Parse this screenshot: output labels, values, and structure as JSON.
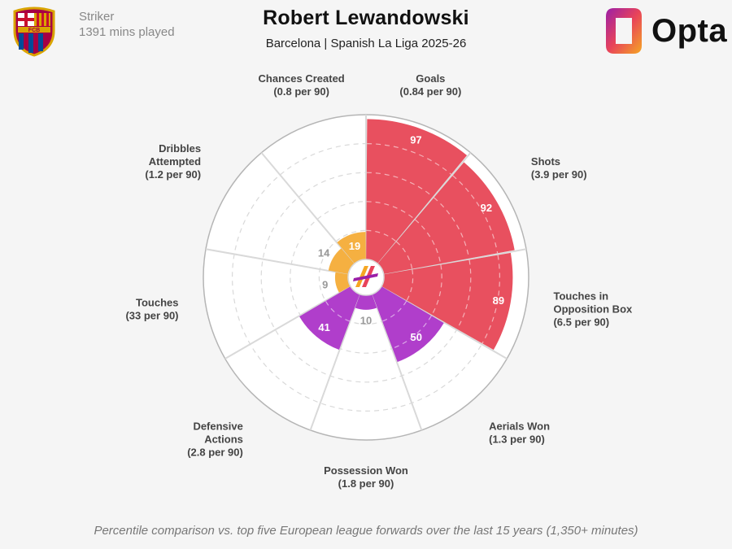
{
  "header": {
    "position": "Striker",
    "minutes": "1391 mins played",
    "player_name": "Robert Lewandowski",
    "subtitle": "Barcelona | Spanish La Liga 2025-26",
    "brand": "Opta",
    "club_badge_text": "FCB"
  },
  "footnote": "Percentile comparison vs. top five European league forwards over the last 15 years (1,350+ minutes)",
  "colors": {
    "attacking": "#e8505f",
    "creative": "#f5b041",
    "defensive": "#b03ecb",
    "grid": "#d9d9d9",
    "outline": "#b5b5b5",
    "background": "#f5f5f5"
  },
  "chart_data": {
    "type": "radar-polar-bar",
    "scale": [
      0,
      100
    ],
    "metrics": [
      {
        "label": [
          "Goals",
          "(0.84 per 90)"
        ],
        "percentile": 97,
        "group": "attacking"
      },
      {
        "label": [
          "Shots",
          "(3.9 per 90)"
        ],
        "percentile": 92,
        "group": "attacking"
      },
      {
        "label": [
          "Touches in",
          "Opposition Box",
          "(6.5 per 90)"
        ],
        "percentile": 89,
        "group": "attacking"
      },
      {
        "label": [
          "Aerials Won",
          "(1.3 per 90)"
        ],
        "percentile": 50,
        "group": "defensive"
      },
      {
        "label": [
          "Possession Won",
          "(1.8 per 90)"
        ],
        "percentile": 10,
        "group": "defensive"
      },
      {
        "label": [
          "Defensive",
          "Actions",
          "(2.8 per 90)"
        ],
        "percentile": 41,
        "group": "defensive"
      },
      {
        "label": [
          "Touches",
          "(33 per 90)"
        ],
        "percentile": 9,
        "group": "creative"
      },
      {
        "label": [
          "Dribbles",
          "Attempted",
          "(1.2 per 90)"
        ],
        "percentile": 14,
        "group": "creative"
      },
      {
        "label": [
          "Chances Created",
          "(0.8 per 90)"
        ],
        "percentile": 19,
        "group": "creative"
      }
    ]
  }
}
